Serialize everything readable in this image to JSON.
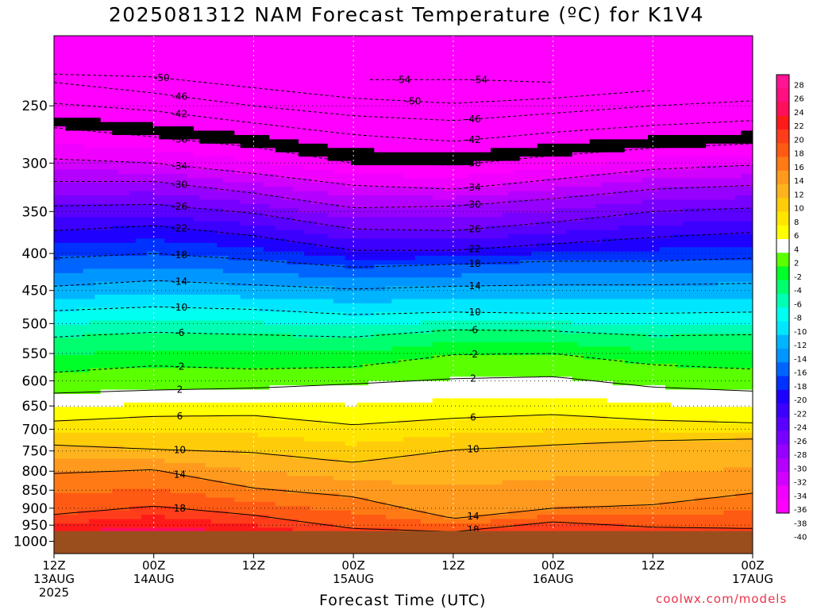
{
  "chart_data": {
    "type": "heatmap",
    "title": "2025081312 NAM Forecast Temperature (ºC) for K1V4",
    "xlabel": "Forecast Time (UTC)",
    "ylabel": "",
    "credit": "coolwx.com/models",
    "y_scale": "log-pressure (inverted)",
    "y_range_hpa": [
      1040,
      200
    ],
    "y_ticks": [
      250,
      300,
      350,
      400,
      450,
      500,
      550,
      600,
      650,
      700,
      750,
      800,
      850,
      900,
      950,
      1000
    ],
    "x_range_hours": [
      0,
      84
    ],
    "x_ticks": [
      {
        "hour": 0,
        "lines": [
          "12Z",
          "13AUG",
          "2025"
        ]
      },
      {
        "hour": 12,
        "lines": [
          "00Z",
          "14AUG"
        ]
      },
      {
        "hour": 24,
        "lines": [
          "12Z"
        ]
      },
      {
        "hour": 36,
        "lines": [
          "00Z",
          "15AUG"
        ]
      },
      {
        "hour": 48,
        "lines": [
          "12Z"
        ]
      },
      {
        "hour": 60,
        "lines": [
          "00Z",
          "16AUG"
        ]
      },
      {
        "hour": 72,
        "lines": [
          "12Z"
        ]
      },
      {
        "hour": 84,
        "lines": [
          "00Z",
          "17AUG"
        ]
      }
    ],
    "grid": true,
    "ground_level_hpa": 968,
    "ground_color": "#9a4e1e",
    "colorbar": {
      "position": "right",
      "labels": [
        28,
        26,
        24,
        22,
        20,
        18,
        16,
        14,
        12,
        10,
        8,
        6,
        4,
        2,
        -2,
        -4,
        -6,
        -8,
        -10,
        -12,
        -14,
        -16,
        -18,
        -20,
        -22,
        -24,
        -26,
        -28,
        -30,
        -32,
        -34,
        -36,
        -38,
        -40
      ],
      "colors": [
        "#ff1493",
        "#ff0f7f",
        "#ff0f5a",
        "#ff1a1a",
        "#ff3d1a",
        "#ff5a14",
        "#ff7a14",
        "#ff9a1e",
        "#ffb41e",
        "#ffcc0a",
        "#ffe600",
        "#ffff00",
        "#ffffff",
        "#5aff00",
        "#00ff28",
        "#00ff6e",
        "#00ffb4",
        "#00fff0",
        "#00e6ff",
        "#00b4ff",
        "#0096ff",
        "#0064ff",
        "#0032ff",
        "#1e00ff",
        "#3c00ff",
        "#5a00ff",
        "#7800ff",
        "#9600ff",
        "#b400ff",
        "#d200ff",
        "#f000ff",
        "#ff00ff"
      ]
    },
    "series": [
      {
        "name": "-54",
        "x": [
          38,
          50,
          60
        ],
        "p": [
          230,
          230,
          232
        ]
      },
      {
        "name": "-50",
        "x": [
          0,
          12,
          24,
          36,
          48,
          60,
          72
        ],
        "p": [
          226,
          228,
          236,
          244,
          248,
          244,
          238
        ]
      },
      {
        "name": "-46",
        "x": [
          0,
          12,
          24,
          36,
          48,
          60,
          72,
          84
        ],
        "p": [
          232,
          240,
          250,
          258,
          262,
          256,
          250,
          246
        ]
      },
      {
        "name": "-42",
        "x": [
          0,
          12,
          24,
          36,
          48,
          60,
          72,
          84
        ],
        "p": [
          248,
          254,
          264,
          274,
          280,
          272,
          266,
          262
        ]
      },
      {
        "name": "-38",
        "x": [
          0,
          12,
          24,
          36,
          48,
          60,
          72,
          84
        ],
        "p": [
          268,
          276,
          285,
          300,
          302,
          293,
          286,
          282
        ]
      },
      {
        "name": "-34",
        "x": [
          0,
          12,
          24,
          36,
          48,
          60,
          72,
          84
        ],
        "p": [
          296,
          300,
          310,
          322,
          326,
          316,
          306,
          302
        ]
      },
      {
        "name": "-30",
        "x": [
          0,
          12,
          24,
          36,
          48,
          60,
          72,
          84
        ],
        "p": [
          318,
          318,
          330,
          346,
          344,
          336,
          326,
          322
        ]
      },
      {
        "name": "-26",
        "x": [
          0,
          12,
          24,
          36,
          48,
          60,
          72,
          84
        ],
        "p": [
          344,
          342,
          352,
          370,
          372,
          362,
          350,
          346
        ]
      },
      {
        "name": "-22",
        "x": [
          0,
          12,
          24,
          36,
          48,
          60,
          72,
          84
        ],
        "p": [
          372,
          366,
          378,
          396,
          396,
          388,
          380,
          374
        ]
      },
      {
        "name": "-18",
        "x": [
          0,
          12,
          24,
          36,
          48,
          60,
          72,
          84
        ],
        "p": [
          406,
          400,
          408,
          418,
          414,
          410,
          410,
          406
        ]
      },
      {
        "name": "-14",
        "x": [
          0,
          12,
          24,
          36,
          48,
          60,
          72,
          84
        ],
        "p": [
          444,
          436,
          442,
          448,
          444,
          442,
          442,
          440
        ]
      },
      {
        "name": "-10",
        "x": [
          0,
          12,
          24,
          36,
          48,
          60,
          72,
          84
        ],
        "p": [
          480,
          474,
          478,
          486,
          482,
          484,
          484,
          482
        ]
      },
      {
        "name": "-6",
        "x": [
          0,
          12,
          24,
          36,
          48,
          60,
          72,
          84
        ],
        "p": [
          522,
          514,
          518,
          522,
          510,
          512,
          520,
          518
        ]
      },
      {
        "name": "-2",
        "x": [
          0,
          12,
          24,
          36,
          48,
          60,
          72,
          84
        ],
        "p": [
          584,
          572,
          578,
          574,
          552,
          550,
          570,
          578
        ]
      },
      {
        "name": "2",
        "x": [
          0,
          12,
          24,
          36,
          48,
          60,
          72,
          84
        ],
        "p": [
          624,
          618,
          614,
          606,
          596,
          592,
          612,
          620
        ]
      },
      {
        "name": "6",
        "x": [
          0,
          12,
          24,
          36,
          48,
          60,
          72,
          84
        ],
        "p": [
          682,
          672,
          670,
          690,
          676,
          668,
          680,
          686
        ]
      },
      {
        "name": "10",
        "x": [
          0,
          12,
          24,
          36,
          48,
          60,
          72,
          84
        ],
        "p": [
          736,
          746,
          754,
          778,
          748,
          736,
          726,
          722
        ]
      },
      {
        "name": "14",
        "x": [
          0,
          12,
          24,
          36,
          48,
          60,
          72,
          84
        ],
        "p": [
          806,
          796,
          844,
          868,
          930,
          900,
          890,
          858
        ]
      },
      {
        "name": "18",
        "x": [
          0,
          12,
          24,
          36,
          48,
          60,
          72,
          84
        ],
        "p": [
          918,
          894,
          920,
          960,
          970,
          940,
          956,
          960
        ]
      }
    ]
  }
}
